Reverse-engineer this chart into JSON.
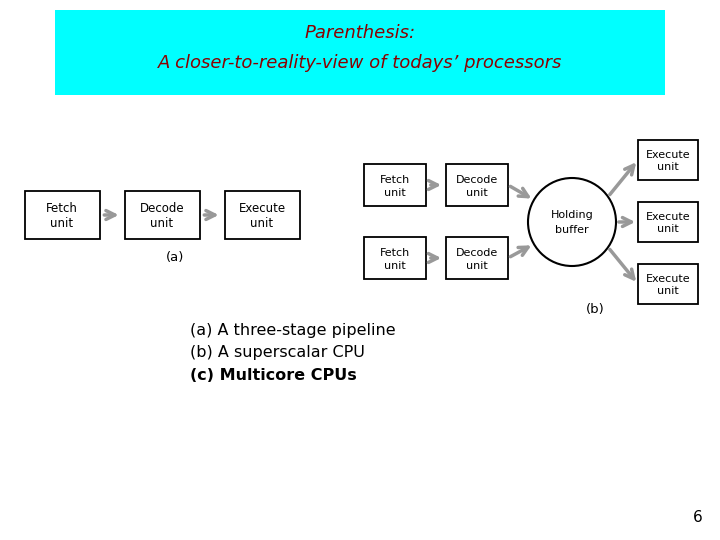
{
  "title_line1": "Parenthesis:",
  "title_line2": "A closer-to-reality-view of todays’ processors",
  "title_bg": "#00FFFF",
  "title_text_color": "#8B0000",
  "bg_color": "#FFFFFF",
  "label_a": "(a)",
  "label_b": "(b)",
  "caption_lines": [
    "(a) A three-stage pipeline",
    "(b) A superscalar CPU",
    "(c) Multicore CPUs"
  ],
  "caption_bold": [
    false,
    false,
    true
  ],
  "page_number": "6",
  "box_edge_color": "#000000",
  "box_face_color": "#FFFFFF",
  "arrow_color": "#999999",
  "title_font": "Comic Sans MS",
  "caption_font": "Comic Sans MS"
}
